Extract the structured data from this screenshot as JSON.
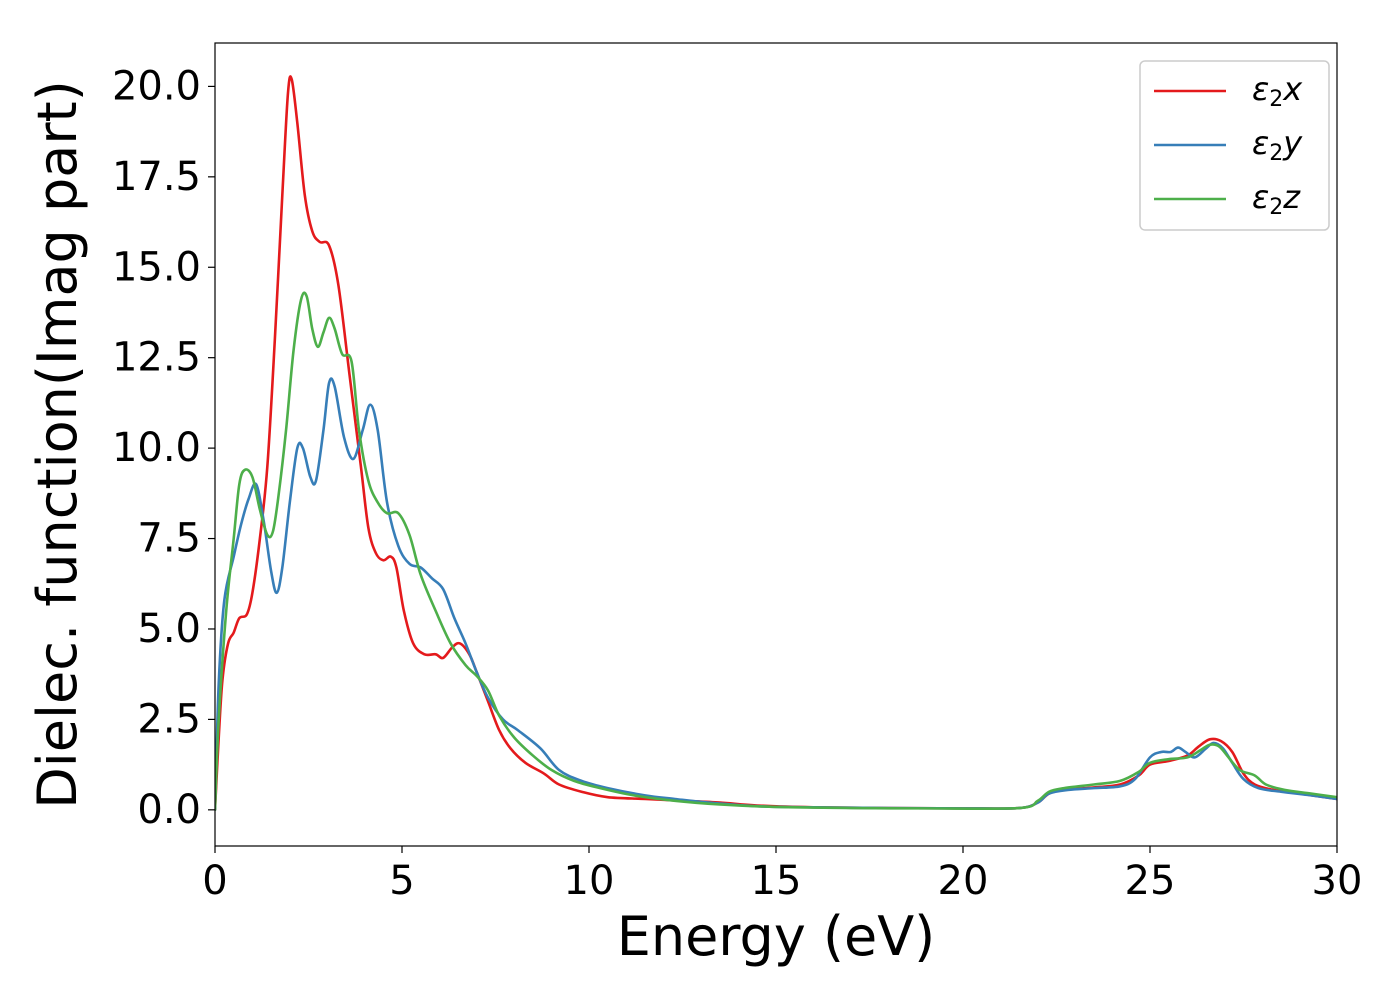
{
  "chart_data": {
    "type": "line",
    "title": "",
    "xlabel": "Energy (eV)",
    "ylabel": "Dielec. function(Imag part)",
    "xlim": [
      0,
      30
    ],
    "ylim": [
      -1,
      21.2
    ],
    "x_ticks": [
      0,
      5,
      10,
      15,
      20,
      25,
      30
    ],
    "x_tick_labels": [
      "0",
      "5",
      "10",
      "15",
      "20",
      "25",
      "30"
    ],
    "y_ticks": [
      0,
      2.5,
      5,
      7.5,
      10,
      12.5,
      15,
      17.5,
      20
    ],
    "y_tick_labels": [
      "0.0",
      "2.5",
      "5.0",
      "7.5",
      "10.0",
      "12.5",
      "15.0",
      "17.5",
      "20.0"
    ],
    "grid": false,
    "legend_position": "top-right",
    "series": [
      {
        "name": "ε₂x",
        "legend_main": "ε",
        "legend_sub": "2",
        "legend_suffix": "x",
        "color": "#e41a1c",
        "points": [
          [
            0,
            0
          ],
          [
            0.1,
            2.0
          ],
          [
            0.2,
            3.6
          ],
          [
            0.35,
            4.6
          ],
          [
            0.5,
            4.9
          ],
          [
            0.65,
            5.3
          ],
          [
            0.85,
            5.4
          ],
          [
            1.0,
            6.0
          ],
          [
            1.2,
            7.5
          ],
          [
            1.4,
            9.5
          ],
          [
            1.6,
            13.0
          ],
          [
            1.8,
            17.0
          ],
          [
            1.95,
            19.8
          ],
          [
            2.05,
            20.2
          ],
          [
            2.2,
            19.0
          ],
          [
            2.4,
            17.0
          ],
          [
            2.6,
            16.0
          ],
          [
            2.8,
            15.7
          ],
          [
            3.05,
            15.6
          ],
          [
            3.3,
            14.5
          ],
          [
            3.6,
            12.0
          ],
          [
            3.9,
            9.5
          ],
          [
            4.1,
            7.8
          ],
          [
            4.3,
            7.1
          ],
          [
            4.5,
            6.9
          ],
          [
            4.7,
            7.0
          ],
          [
            4.85,
            6.7
          ],
          [
            5.05,
            5.5
          ],
          [
            5.3,
            4.6
          ],
          [
            5.6,
            4.3
          ],
          [
            5.9,
            4.3
          ],
          [
            6.1,
            4.2
          ],
          [
            6.35,
            4.5
          ],
          [
            6.55,
            4.6
          ],
          [
            6.8,
            4.3
          ],
          [
            7.0,
            3.8
          ],
          [
            7.3,
            3.0
          ],
          [
            7.6,
            2.2
          ],
          [
            7.9,
            1.7
          ],
          [
            8.3,
            1.3
          ],
          [
            8.8,
            1.0
          ],
          [
            9.2,
            0.7
          ],
          [
            9.8,
            0.5
          ],
          [
            10.5,
            0.35
          ],
          [
            11.5,
            0.3
          ],
          [
            12.5,
            0.25
          ],
          [
            13.5,
            0.2
          ],
          [
            14.5,
            0.12
          ],
          [
            16,
            0.07
          ],
          [
            18,
            0.05
          ],
          [
            20,
            0.04
          ],
          [
            21.5,
            0.05
          ],
          [
            22,
            0.2
          ],
          [
            22.3,
            0.45
          ],
          [
            22.7,
            0.55
          ],
          [
            23.5,
            0.62
          ],
          [
            24.2,
            0.7
          ],
          [
            24.7,
            0.95
          ],
          [
            25.0,
            1.25
          ],
          [
            25.5,
            1.35
          ],
          [
            26.0,
            1.5
          ],
          [
            26.3,
            1.75
          ],
          [
            26.6,
            1.95
          ],
          [
            26.9,
            1.9
          ],
          [
            27.2,
            1.6
          ],
          [
            27.5,
            1.0
          ],
          [
            27.8,
            0.7
          ],
          [
            28.3,
            0.55
          ],
          [
            29,
            0.45
          ],
          [
            30,
            0.3
          ]
        ]
      },
      {
        "name": "ε₂y",
        "legend_main": "ε",
        "legend_sub": "2",
        "legend_suffix": "y",
        "color": "#377eb8",
        "points": [
          [
            0,
            0
          ],
          [
            0.1,
            3.5
          ],
          [
            0.25,
            5.8
          ],
          [
            0.5,
            7.0
          ],
          [
            0.7,
            7.9
          ],
          [
            0.9,
            8.6
          ],
          [
            1.1,
            9.0
          ],
          [
            1.3,
            8.0
          ],
          [
            1.5,
            6.6
          ],
          [
            1.65,
            6.0
          ],
          [
            1.8,
            6.7
          ],
          [
            2.0,
            8.5
          ],
          [
            2.2,
            10.0
          ],
          [
            2.35,
            10.0
          ],
          [
            2.55,
            9.2
          ],
          [
            2.7,
            9.1
          ],
          [
            2.9,
            10.5
          ],
          [
            3.05,
            11.8
          ],
          [
            3.2,
            11.7
          ],
          [
            3.45,
            10.3
          ],
          [
            3.7,
            9.7
          ],
          [
            3.95,
            10.5
          ],
          [
            4.15,
            11.2
          ],
          [
            4.35,
            10.5
          ],
          [
            4.6,
            8.5
          ],
          [
            4.9,
            7.3
          ],
          [
            5.2,
            6.8
          ],
          [
            5.5,
            6.7
          ],
          [
            5.8,
            6.4
          ],
          [
            6.1,
            6.1
          ],
          [
            6.4,
            5.3
          ],
          [
            6.7,
            4.6
          ],
          [
            7.0,
            3.8
          ],
          [
            7.3,
            3.1
          ],
          [
            7.7,
            2.5
          ],
          [
            8.1,
            2.2
          ],
          [
            8.7,
            1.7
          ],
          [
            9.2,
            1.1
          ],
          [
            9.8,
            0.8
          ],
          [
            10.5,
            0.6
          ],
          [
            11.5,
            0.4
          ],
          [
            12.3,
            0.3
          ],
          [
            13.2,
            0.2
          ],
          [
            14.5,
            0.1
          ],
          [
            16,
            0.07
          ],
          [
            18,
            0.05
          ],
          [
            20,
            0.04
          ],
          [
            21.5,
            0.05
          ],
          [
            22,
            0.2
          ],
          [
            22.3,
            0.45
          ],
          [
            22.8,
            0.55
          ],
          [
            23.5,
            0.6
          ],
          [
            24.2,
            0.65
          ],
          [
            24.6,
            0.85
          ],
          [
            25.0,
            1.45
          ],
          [
            25.3,
            1.6
          ],
          [
            25.55,
            1.6
          ],
          [
            25.75,
            1.72
          ],
          [
            25.95,
            1.6
          ],
          [
            26.2,
            1.45
          ],
          [
            26.5,
            1.7
          ],
          [
            26.7,
            1.85
          ],
          [
            26.95,
            1.7
          ],
          [
            27.2,
            1.3
          ],
          [
            27.5,
            0.85
          ],
          [
            27.9,
            0.6
          ],
          [
            28.5,
            0.5
          ],
          [
            29.3,
            0.4
          ],
          [
            30,
            0.3
          ]
        ]
      },
      {
        "name": "ε₂z",
        "legend_main": "ε",
        "legend_sub": "2",
        "legend_suffix": "z",
        "color": "#4daf4a",
        "points": [
          [
            0,
            0
          ],
          [
            0.1,
            2.5
          ],
          [
            0.3,
            5.5
          ],
          [
            0.5,
            7.5
          ],
          [
            0.65,
            9.0
          ],
          [
            0.8,
            9.4
          ],
          [
            1.0,
            9.2
          ],
          [
            1.2,
            8.3
          ],
          [
            1.4,
            7.6
          ],
          [
            1.55,
            7.7
          ],
          [
            1.7,
            8.7
          ],
          [
            1.9,
            10.5
          ],
          [
            2.1,
            12.7
          ],
          [
            2.3,
            14.1
          ],
          [
            2.45,
            14.2
          ],
          [
            2.6,
            13.3
          ],
          [
            2.75,
            12.8
          ],
          [
            2.9,
            13.2
          ],
          [
            3.05,
            13.6
          ],
          [
            3.2,
            13.3
          ],
          [
            3.4,
            12.6
          ],
          [
            3.65,
            12.4
          ],
          [
            3.85,
            10.5
          ],
          [
            4.1,
            9.1
          ],
          [
            4.35,
            8.5
          ],
          [
            4.6,
            8.2
          ],
          [
            4.9,
            8.2
          ],
          [
            5.2,
            7.6
          ],
          [
            5.5,
            6.5
          ],
          [
            5.9,
            5.5
          ],
          [
            6.3,
            4.6
          ],
          [
            6.7,
            4.0
          ],
          [
            7.0,
            3.7
          ],
          [
            7.3,
            3.3
          ],
          [
            7.6,
            2.6
          ],
          [
            8.0,
            2.0
          ],
          [
            8.5,
            1.5
          ],
          [
            9.0,
            1.1
          ],
          [
            9.6,
            0.8
          ],
          [
            10.3,
            0.6
          ],
          [
            11.2,
            0.4
          ],
          [
            12.3,
            0.25
          ],
          [
            13.5,
            0.15
          ],
          [
            15,
            0.08
          ],
          [
            17,
            0.05
          ],
          [
            19,
            0.04
          ],
          [
            21.5,
            0.05
          ],
          [
            22,
            0.25
          ],
          [
            22.3,
            0.5
          ],
          [
            22.7,
            0.6
          ],
          [
            23.5,
            0.7
          ],
          [
            24.2,
            0.8
          ],
          [
            24.7,
            1.05
          ],
          [
            25.0,
            1.3
          ],
          [
            25.5,
            1.4
          ],
          [
            26.0,
            1.45
          ],
          [
            26.35,
            1.65
          ],
          [
            26.6,
            1.8
          ],
          [
            26.85,
            1.75
          ],
          [
            27.1,
            1.45
          ],
          [
            27.4,
            1.1
          ],
          [
            27.8,
            0.95
          ],
          [
            28.1,
            0.7
          ],
          [
            28.6,
            0.55
          ],
          [
            29.3,
            0.45
          ],
          [
            30,
            0.35
          ]
        ]
      }
    ]
  }
}
